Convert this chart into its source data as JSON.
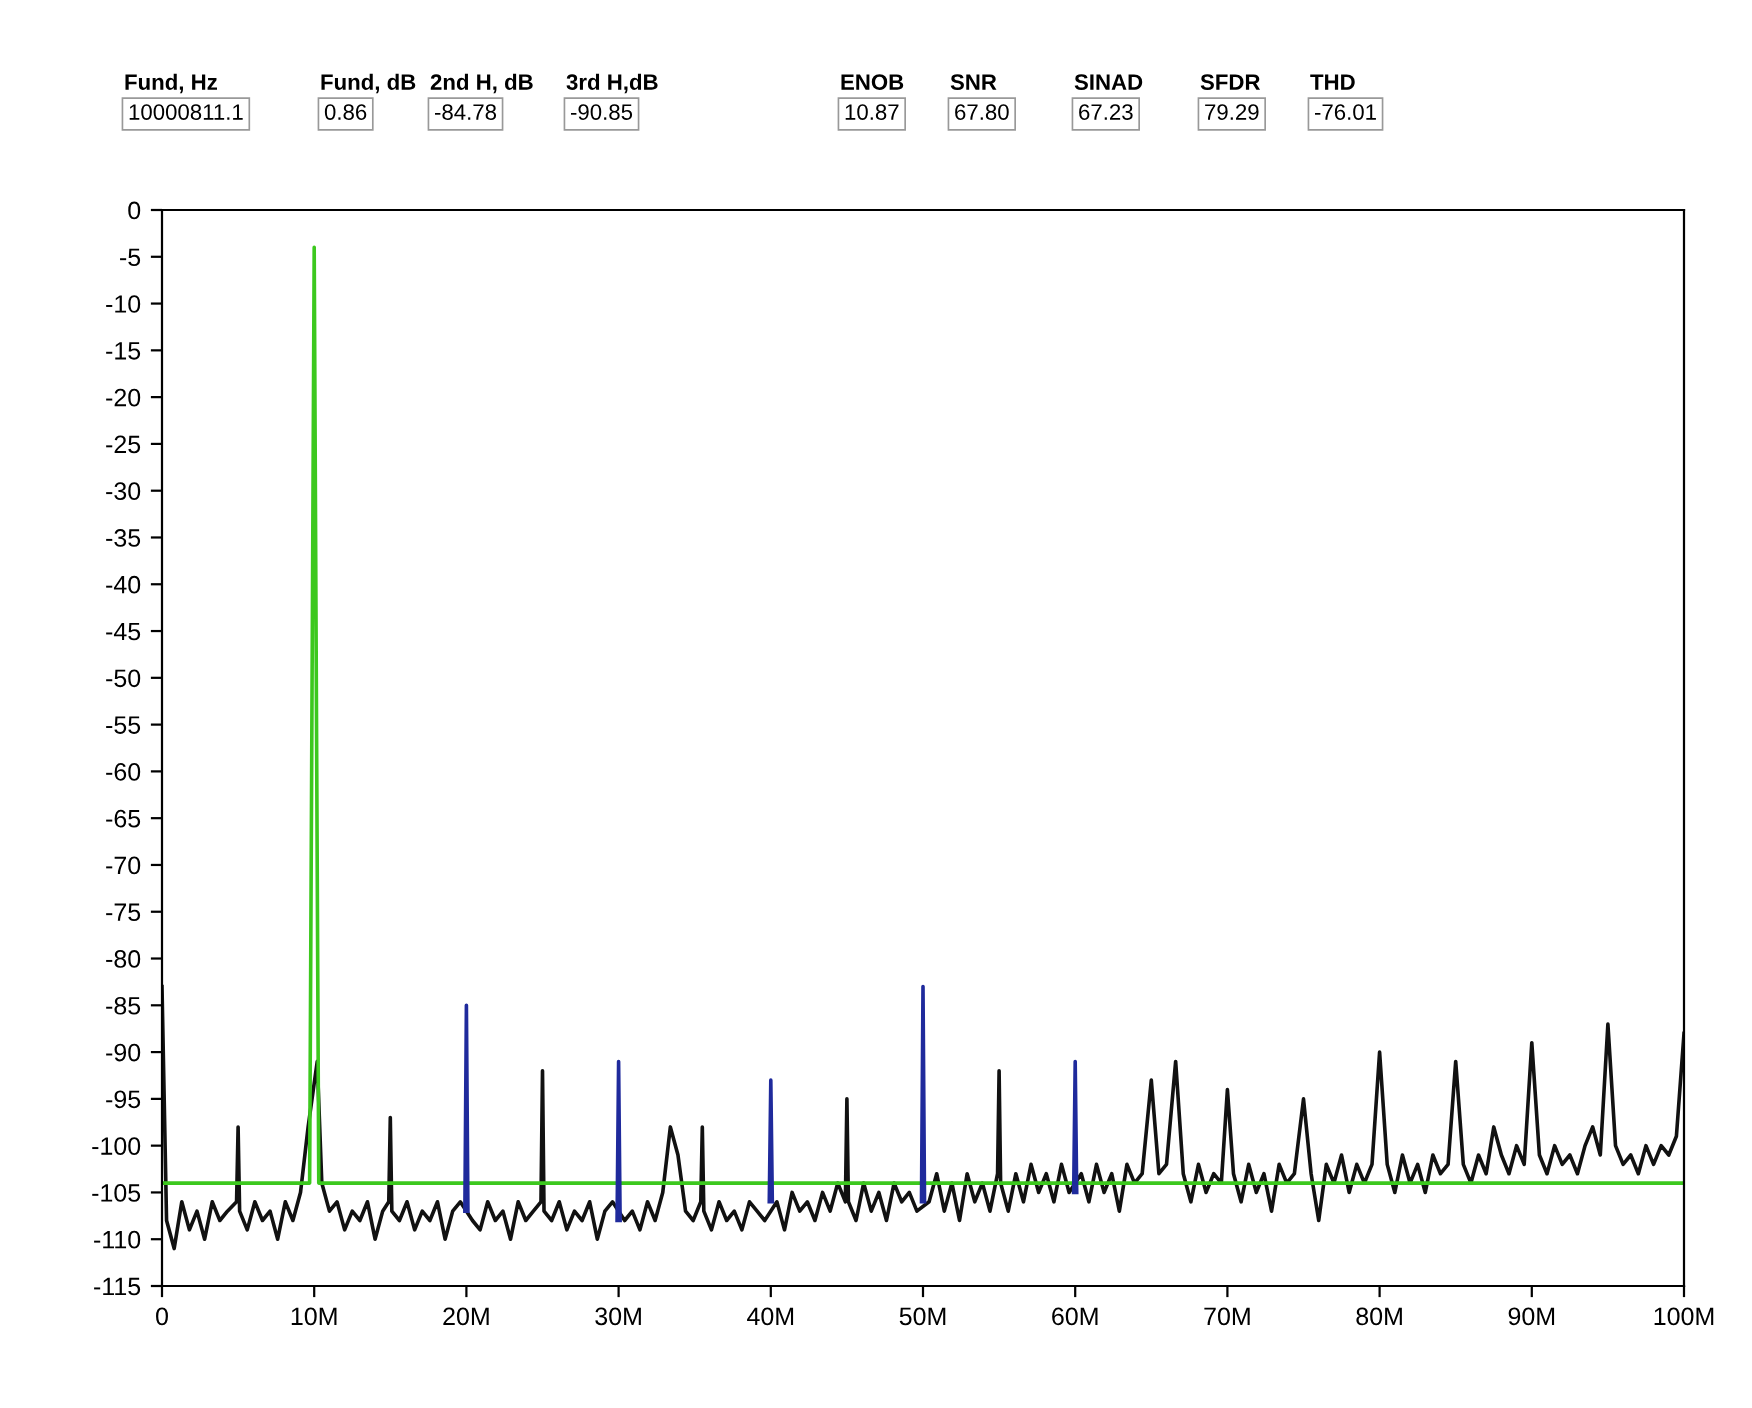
{
  "chart_data": {
    "type": "line",
    "annotations": [
      "Fund, Hz",
      "10000811.1",
      "Fund, dB",
      "0.86",
      "2nd H, dB",
      "-84.78",
      "3rd H,dB",
      "-90.85",
      "ENOB",
      "10.87",
      "SNR",
      "67.80",
      "SINAD",
      "67.23",
      "SFDR",
      "79.29",
      "THD",
      "-76.01"
    ],
    "xlim": [
      0,
      100
    ],
    "ylim": [
      -115,
      0
    ],
    "xticks": [
      0,
      {
        "value": 10,
        "label": "10M"
      },
      {
        "value": 20,
        "label": "20M"
      },
      {
        "value": 30,
        "label": "30M"
      },
      {
        "value": 40,
        "label": "40M"
      },
      {
        "value": 50,
        "label": "50M"
      },
      {
        "value": 60,
        "label": "60M"
      },
      {
        "value": 70,
        "label": "70M"
      },
      {
        "value": 80,
        "label": "80M"
      },
      {
        "value": 90,
        "label": "90M"
      },
      {
        "value": 100,
        "label": "100M"
      }
    ],
    "yticks": [
      0,
      -5,
      -10,
      -15,
      -20,
      -25,
      -30,
      -35,
      -40,
      -45,
      -50,
      -55,
      -60,
      -65,
      -70,
      -75,
      -80,
      -85,
      -90,
      -95,
      -100,
      -105,
      -110,
      -115
    ],
    "marker": "none",
    "line_style": "solid",
    "series": [
      {
        "color": "#111111",
        "x": [
          0,
          0.3,
          0.8,
          1.3,
          1.8,
          2.3,
          2.8,
          3.3,
          3.8,
          4.3,
          4.9,
          5.0,
          5.1,
          5.6,
          6.1,
          6.6,
          7.1,
          7.6,
          8.1,
          8.6,
          9.1,
          9.6,
          10.2,
          10.5,
          11,
          11.5,
          12,
          12.5,
          13,
          13.5,
          14,
          14.5,
          14.9,
          15.0,
          15.1,
          15.6,
          16.1,
          16.6,
          17.1,
          17.6,
          18.1,
          18.6,
          19.1,
          19.6,
          20.4,
          20.9,
          21.4,
          21.9,
          22.4,
          22.9,
          23.4,
          23.9,
          24.4,
          24.9,
          25.0,
          25.1,
          25.6,
          26.1,
          26.6,
          27.1,
          27.6,
          28.1,
          28.6,
          29.1,
          29.6,
          30.4,
          30.9,
          31.4,
          31.9,
          32.4,
          32.9,
          33.4,
          33.9,
          34.4,
          34.9,
          35.4,
          35.5,
          35.6,
          36.1,
          36.6,
          37.1,
          37.6,
          38.1,
          38.6,
          39.1,
          39.6,
          40.4,
          40.9,
          41.4,
          41.9,
          42.4,
          42.9,
          43.4,
          43.9,
          44.4,
          44.9,
          45.0,
          45.1,
          45.6,
          46.1,
          46.6,
          47.1,
          47.6,
          48.1,
          48.6,
          49.1,
          49.6,
          50.4,
          50.9,
          51.4,
          51.9,
          52.4,
          52.9,
          53.4,
          53.9,
          54.4,
          54.9,
          55.0,
          55.1,
          55.6,
          56.1,
          56.6,
          57.1,
          57.6,
          58.1,
          58.6,
          59.1,
          59.6,
          60.4,
          60.9,
          61.4,
          61.9,
          62.4,
          62.9,
          63.4,
          63.9,
          64.4,
          65.0,
          65.5,
          66.0,
          66.6,
          67.1,
          67.6,
          68.1,
          68.6,
          69.1,
          69.6,
          70.0,
          70.4,
          70.9,
          71.4,
          71.9,
          72.4,
          72.9,
          73.4,
          73.9,
          74.4,
          75.0,
          75.5,
          76.0,
          76.5,
          77.0,
          77.5,
          78.0,
          78.5,
          79.0,
          79.5,
          80.0,
          80.5,
          81.0,
          81.5,
          82.0,
          82.5,
          83.0,
          83.5,
          84.0,
          84.5,
          85.0,
          85.5,
          86.0,
          86.5,
          87.0,
          87.5,
          88.0,
          88.5,
          89.0,
          89.5,
          90.0,
          90.5,
          91.0,
          91.5,
          92.0,
          92.5,
          93.0,
          93.5,
          94.0,
          94.5,
          95.0,
          95.5,
          96.0,
          96.5,
          97.0,
          97.5,
          98.0,
          98.5,
          99.0,
          99.5,
          100
        ],
        "values": [
          -83,
          -108,
          -111,
          -106,
          -109,
          -107,
          -110,
          -106,
          -108,
          -107,
          -106,
          -98,
          -107,
          -109,
          -106,
          -108,
          -107,
          -110,
          -106,
          -108,
          -105,
          -98,
          -91,
          -104,
          -107,
          -106,
          -109,
          -107,
          -108,
          -106,
          -110,
          -107,
          -106,
          -97,
          -107,
          -108,
          -106,
          -109,
          -107,
          -108,
          -106,
          -110,
          -107,
          -106,
          -108,
          -109,
          -106,
          -108,
          -107,
          -110,
          -106,
          -108,
          -107,
          -106,
          -92,
          -107,
          -108,
          -106,
          -109,
          -107,
          -108,
          -106,
          -110,
          -107,
          -106,
          -108,
          -107,
          -109,
          -106,
          -108,
          -105,
          -98,
          -101,
          -107,
          -108,
          -106,
          -98,
          -107,
          -109,
          -106,
          -108,
          -107,
          -109,
          -106,
          -107,
          -108,
          -106,
          -109,
          -105,
          -107,
          -106,
          -108,
          -105,
          -107,
          -104,
          -106,
          -95,
          -106,
          -108,
          -104,
          -107,
          -105,
          -108,
          -104,
          -106,
          -105,
          -107,
          -106,
          -103,
          -107,
          -104,
          -108,
          -103,
          -106,
          -104,
          -107,
          -103,
          -92,
          -104,
          -107,
          -103,
          -106,
          -102,
          -105,
          -103,
          -106,
          -102,
          -105,
          -103,
          -106,
          -102,
          -105,
          -103,
          -107,
          -102,
          -104,
          -103,
          -93,
          -103,
          -102,
          -91,
          -103,
          -106,
          -102,
          -105,
          -103,
          -104,
          -94,
          -103,
          -106,
          -102,
          -105,
          -103,
          -107,
          -102,
          -104,
          -103,
          -95,
          -103,
          -108,
          -102,
          -104,
          -101,
          -105,
          -102,
          -104,
          -102,
          -90,
          -102,
          -105,
          -101,
          -104,
          -102,
          -105,
          -101,
          -103,
          -102,
          -91,
          -102,
          -104,
          -101,
          -103,
          -98,
          -101,
          -103,
          -100,
          -102,
          -89,
          -101,
          -103,
          -100,
          -102,
          -101,
          -103,
          -100,
          -98,
          -101,
          -87,
          -100,
          -102,
          -101,
          -103,
          -100,
          -102,
          -100,
          -101,
          -99,
          -88
        ]
      },
      {
        "color": "#3cc81e",
        "x": [
          0,
          9.7,
          10.0,
          10.3,
          100
        ],
        "values": [
          -104,
          -104,
          -4,
          -104,
          -104
        ]
      },
      {
        "color": "#1f2a9c",
        "x": [
          19.9,
          20,
          20.1,
          25,
          29.9,
          30,
          30.1,
          35,
          39.9,
          40,
          40.1,
          45,
          49.9,
          50,
          50.1,
          55,
          59.9,
          60,
          60.1
        ],
        "values": [
          -107,
          -85,
          -107,
          null,
          -108,
          -91,
          -108,
          null,
          -106,
          -93,
          -106,
          null,
          -106,
          -83,
          -106,
          null,
          -105,
          -91,
          -105
        ]
      }
    ]
  }
}
